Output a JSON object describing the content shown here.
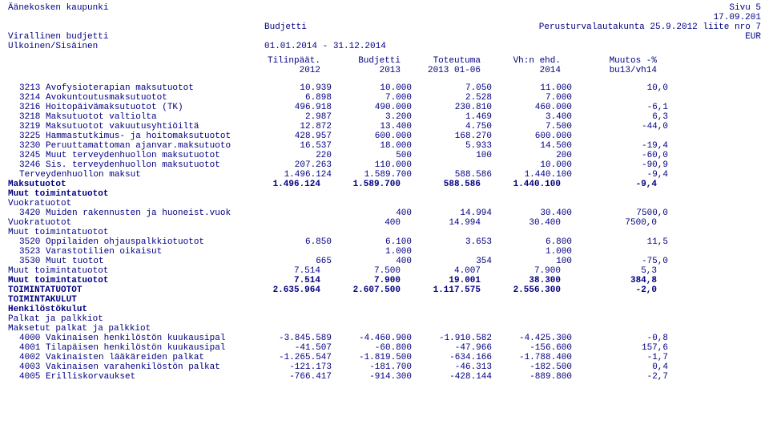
{
  "colors": {
    "text": "#000080",
    "background": "#ffffff"
  },
  "font": {
    "family": "Courier New",
    "size_pt": 11
  },
  "header": {
    "l1_left": "Äänekosken kaupunki",
    "l1_right": "Sivu    5",
    "l2_right": "17.09.201",
    "l3_mid": "Budjetti",
    "l3_right": "Perusturvalautakunta 25.9.2012 liite nro 7",
    "l4_left": "Virallinen budjetti",
    "l4_right": "EUR",
    "l5_left": "Ulkoinen/Sisäinen",
    "l5_mid": "01.01.2014 - 31.12.2014"
  },
  "columns": {
    "row1": [
      "",
      "Tilinpäät.",
      "Budjetti",
      "Toteutuma",
      "Vh:n ehd.",
      "Muutos -%"
    ],
    "row2": [
      "",
      "2012",
      "2013",
      "2013 01-06",
      "2014",
      "bu13/vh14"
    ]
  },
  "rows": [
    {
      "label": "3213 Avofysioterapian maksutuotot",
      "ind": 2,
      "bold": false,
      "v": [
        "10.939",
        "10.000",
        "7.050",
        "11.000",
        "10,0"
      ]
    },
    {
      "label": "3214 Avokuntoutusmaksutuotot",
      "ind": 2,
      "bold": false,
      "v": [
        "6.898",
        "7.000",
        "2.528",
        "7.000",
        ""
      ]
    },
    {
      "label": "3216 Hoitopäivämaksutuotot (TK)",
      "ind": 2,
      "bold": false,
      "v": [
        "496.918",
        "490.000",
        "230.810",
        "460.000",
        "-6,1"
      ]
    },
    {
      "label": "3218 Maksutuotot valtiolta",
      "ind": 2,
      "bold": false,
      "v": [
        "2.987",
        "3.200",
        "1.469",
        "3.400",
        "6,3"
      ]
    },
    {
      "label": "3219 Maksutuotot vakuutusyhtiöiltä",
      "ind": 2,
      "bold": false,
      "v": [
        "12.872",
        "13.400",
        "4.750",
        "7.500",
        "-44,0"
      ]
    },
    {
      "label": "3225 Hammastutkimus- ja hoitomaksutuotot",
      "ind": 2,
      "bold": false,
      "v": [
        "428.957",
        "600.000",
        "168.270",
        "600.000",
        ""
      ]
    },
    {
      "label": "3230 Peruuttamattoman ajanvar.maksutuoto",
      "ind": 2,
      "bold": false,
      "v": [
        "16.537",
        "18.000",
        "5.933",
        "14.500",
        "-19,4"
      ]
    },
    {
      "label": "3245 Muut terveydenhuollon maksutuotot",
      "ind": 2,
      "bold": false,
      "v": [
        "220",
        "500",
        "100",
        "200",
        "-60,0"
      ]
    },
    {
      "label": "3246 Sis. terveydenhuollon maksutuotot",
      "ind": 2,
      "bold": false,
      "v": [
        "207.263",
        "110.000",
        "",
        "10.000",
        "-90,9"
      ]
    },
    {
      "label": "Terveydenhuollon maksut",
      "ind": 2,
      "bold": false,
      "v": [
        "1.496.124",
        "1.589.700",
        "588.586",
        "1.440.100",
        "-9,4"
      ]
    },
    {
      "label": "Maksutuotot",
      "ind": 0,
      "bold": true,
      "v": [
        "1.496.124",
        "1.589.700",
        "588.586",
        "1.440.100",
        "-9,4"
      ]
    },
    {
      "label": "Muut toimintatuotot",
      "ind": 0,
      "bold": true,
      "v": [
        "",
        "",
        "",
        "",
        ""
      ]
    },
    {
      "label": "Vuokratuotot",
      "ind": 1,
      "bold": false,
      "v": [
        "",
        "",
        "",
        "",
        ""
      ]
    },
    {
      "label": "3420 Muiden rakennusten ja huoneist.vuok",
      "ind": 2,
      "bold": false,
      "v": [
        "",
        "400",
        "14.994",
        "30.400",
        "7500,0"
      ]
    },
    {
      "label": "Vuokratuotot",
      "ind": 1,
      "bold": false,
      "v": [
        "",
        "400",
        "14.994",
        "30.400",
        "7500,0"
      ]
    },
    {
      "label": "Muut toimintatuotot",
      "ind": 1,
      "bold": false,
      "v": [
        "",
        "",
        "",
        "",
        ""
      ]
    },
    {
      "label": "3520 Oppilaiden ohjauspalkkiotuotot",
      "ind": 2,
      "bold": false,
      "v": [
        "6.850",
        "6.100",
        "3.653",
        "6.800",
        "11,5"
      ]
    },
    {
      "label": "3523 Varastotilien oikaisut",
      "ind": 2,
      "bold": false,
      "v": [
        "",
        "1.000",
        "",
        "1.000",
        ""
      ]
    },
    {
      "label": "3530 Muut tuotot",
      "ind": 2,
      "bold": false,
      "v": [
        "665",
        "400",
        "354",
        "100",
        "-75,0"
      ]
    },
    {
      "label": "Muut toimintatuotot",
      "ind": 1,
      "bold": false,
      "v": [
        "7.514",
        "7.500",
        "4.007",
        "7.900",
        "5,3"
      ]
    },
    {
      "label": "Muut toimintatuotot",
      "ind": 0,
      "bold": true,
      "v": [
        "7.514",
        "7.900",
        "19.001",
        "38.300",
        "384,8"
      ]
    },
    {
      "label": "TOIMINTATUOTOT",
      "ind": 0,
      "bold": true,
      "v": [
        "2.635.964",
        "2.607.500",
        "1.117.575",
        "2.556.300",
        "-2,0"
      ]
    },
    {
      "label": "TOIMINTAKULUT",
      "ind": 0,
      "bold": true,
      "v": [
        "",
        "",
        "",
        "",
        ""
      ]
    },
    {
      "label": "Henkilöstökulut",
      "ind": 0,
      "bold": true,
      "v": [
        "",
        "",
        "",
        "",
        ""
      ]
    },
    {
      "label": "Palkat ja palkkiot",
      "ind": 1,
      "bold": false,
      "v": [
        "",
        "",
        "",
        "",
        ""
      ]
    },
    {
      "label": "Maksetut palkat ja palkkiot",
      "ind": 1,
      "bold": false,
      "v": [
        "",
        "",
        "",
        "",
        ""
      ]
    },
    {
      "label": "4000 Vakinaisen henkilöstön kuukausipal",
      "ind": 2,
      "bold": false,
      "v": [
        "-3.845.589",
        "-4.460.900",
        "-1.910.582",
        "-4.425.300",
        "-0,8"
      ]
    },
    {
      "label": "4001 Tilapäisen henkilöstön kuukausipal",
      "ind": 2,
      "bold": false,
      "v": [
        "-41.507",
        "-60.800",
        "-47.966",
        "-156.600",
        "157,6"
      ]
    },
    {
      "label": "4002 Vakinaisten lääkäreiden palkat",
      "ind": 2,
      "bold": false,
      "v": [
        "-1.265.547",
        "-1.819.500",
        "-634.166",
        "-1.788.400",
        "-1,7"
      ]
    },
    {
      "label": "4003 Vakinaisen varahenkilöstön palkat",
      "ind": 2,
      "bold": false,
      "v": [
        "-121.173",
        "-181.700",
        "-46.313",
        "-182.500",
        "0,4"
      ]
    },
    {
      "label": "4005 Erilliskorvaukset",
      "ind": 2,
      "bold": false,
      "v": [
        "-766.417",
        "-914.300",
        "-428.144",
        "-889.800",
        "-2,7"
      ]
    }
  ]
}
